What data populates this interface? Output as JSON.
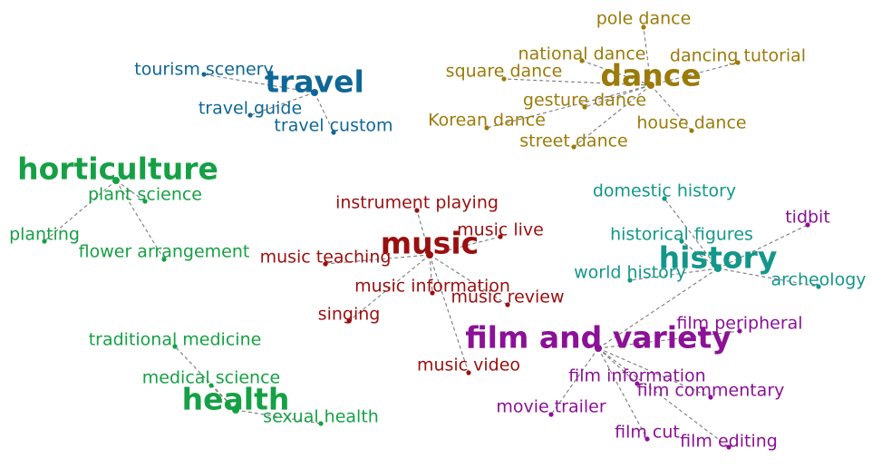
{
  "colors": {
    "travel": "#0f6796",
    "dance": "#9b7b0a",
    "horticulture": "#16a045",
    "music": "#9a0f0f",
    "history": "#13978a",
    "health": "#16a045",
    "film": "#8b1196",
    "edge": "#7a7a7a"
  },
  "clusters": [
    {
      "id": "travel",
      "hub": "travel",
      "color_key": "travel",
      "leaves": [
        "tourism scenery",
        "travel guide",
        "travel custom"
      ]
    },
    {
      "id": "dance",
      "hub": "dance",
      "color_key": "dance",
      "leaves": [
        "pole dance",
        "national dance",
        "dancing tutorial",
        "square dance",
        "gesture dance",
        "Korean dance",
        "house dance",
        "street dance"
      ]
    },
    {
      "id": "horticulture",
      "hub": "horticulture",
      "color_key": "horticulture",
      "leaves": [
        "plant science",
        "planting",
        "flower arrangement"
      ]
    },
    {
      "id": "music",
      "hub": "music",
      "color_key": "music",
      "leaves": [
        "instrument playing",
        "music live",
        "music teaching",
        "music information",
        "music review",
        "singing",
        "music video"
      ]
    },
    {
      "id": "history",
      "hub": "history",
      "color_key": "history",
      "leaves": [
        "domestic history",
        "historical figures",
        "world history",
        "archeology"
      ],
      "extra_leaves": [
        {
          "label": "tidbit",
          "color_key": "film"
        }
      ]
    },
    {
      "id": "health",
      "hub": "health",
      "color_key": "health",
      "leaves": [
        "traditional medicine",
        "medical science",
        "sexual health"
      ]
    },
    {
      "id": "film",
      "hub": "film and variety",
      "color_key": "film",
      "leaves": [
        "film peripheral",
        "film information",
        "film commentary",
        "movie trailer",
        "film cut",
        "film editing"
      ]
    }
  ],
  "cross_links": [
    {
      "from": "film and variety",
      "to": "history"
    }
  ]
}
